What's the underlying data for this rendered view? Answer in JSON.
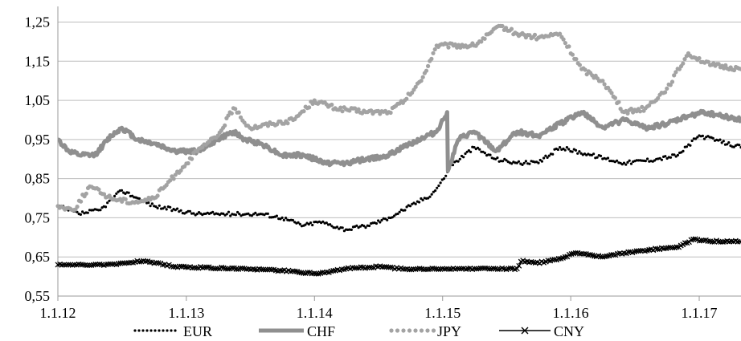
{
  "chart_data": {
    "type": "line",
    "title": "",
    "xlabel": "",
    "ylabel": "",
    "grid": "horizontal",
    "legend": "bottom",
    "x_ticks": [
      "1.1.12",
      "1.1.13",
      "1.1.14",
      "1.1.15",
      "1.1.16",
      "1.1.17"
    ],
    "y_ticks": [
      "0,55",
      "0,65",
      "0,75",
      "0,85",
      "0,95",
      "1,05",
      "1,15",
      "1,25"
    ],
    "xlim": [
      "2012-01-01",
      "2017-04-30"
    ],
    "ylim": [
      0.55,
      1.29
    ],
    "colors": {
      "EUR": "#000000",
      "CHF": "#8f8f8f",
      "JPY": "#a3a3a3",
      "CNY": "#000000",
      "grid": "#bdbdbd",
      "axis": "#9a9a9a"
    },
    "series": [
      {
        "name": "EUR",
        "style": "dotted",
        "points": [
          [
            "2012-01-01",
            0.78
          ],
          [
            "2012-03-01",
            0.76
          ],
          [
            "2012-05-01",
            0.77
          ],
          [
            "2012-07-01",
            0.82
          ],
          [
            "2012-08-15",
            0.8
          ],
          [
            "2012-10-01",
            0.78
          ],
          [
            "2012-12-01",
            0.77
          ],
          [
            "2013-02-01",
            0.76
          ],
          [
            "2013-04-01",
            0.76
          ],
          [
            "2013-06-01",
            0.76
          ],
          [
            "2013-08-01",
            0.76
          ],
          [
            "2013-10-01",
            0.75
          ],
          [
            "2013-12-01",
            0.73
          ],
          [
            "2014-01-15",
            0.74
          ],
          [
            "2014-04-01",
            0.72
          ],
          [
            "2014-06-01",
            0.73
          ],
          [
            "2014-08-01",
            0.75
          ],
          [
            "2014-10-01",
            0.78
          ],
          [
            "2014-12-01",
            0.81
          ],
          [
            "2015-01-05",
            0.85
          ],
          [
            "2015-01-20",
            0.88
          ],
          [
            "2015-04-01",
            0.93
          ],
          [
            "2015-06-01",
            0.9
          ],
          [
            "2015-08-01",
            0.89
          ],
          [
            "2015-10-01",
            0.89
          ],
          [
            "2015-12-01",
            0.93
          ],
          [
            "2016-03-01",
            0.91
          ],
          [
            "2016-06-01",
            0.89
          ],
          [
            "2016-09-01",
            0.9
          ],
          [
            "2016-11-01",
            0.91
          ],
          [
            "2017-01-01",
            0.96
          ],
          [
            "2017-04-30",
            0.93
          ]
        ]
      },
      {
        "name": "CHF",
        "style": "thick",
        "points": [
          [
            "2012-01-01",
            0.95
          ],
          [
            "2012-02-01",
            0.92
          ],
          [
            "2012-03-01",
            0.91
          ],
          [
            "2012-04-15",
            0.91
          ],
          [
            "2012-06-01",
            0.96
          ],
          [
            "2012-07-01",
            0.98
          ],
          [
            "2012-08-15",
            0.95
          ],
          [
            "2012-10-01",
            0.94
          ],
          [
            "2012-12-01",
            0.92
          ],
          [
            "2013-02-01",
            0.92
          ],
          [
            "2013-04-01",
            0.95
          ],
          [
            "2013-05-15",
            0.97
          ],
          [
            "2013-06-15",
            0.95
          ],
          [
            "2013-08-01",
            0.94
          ],
          [
            "2013-10-01",
            0.91
          ],
          [
            "2013-12-01",
            0.91
          ],
          [
            "2014-02-01",
            0.89
          ],
          [
            "2014-04-01",
            0.89
          ],
          [
            "2014-06-01",
            0.9
          ],
          [
            "2014-08-01",
            0.91
          ],
          [
            "2014-10-01",
            0.94
          ],
          [
            "2014-12-15",
            0.97
          ],
          [
            "2015-01-14",
            1.02
          ],
          [
            "2015-01-16",
            0.87
          ],
          [
            "2015-02-15",
            0.95
          ],
          [
            "2015-04-01",
            0.97
          ],
          [
            "2015-06-01",
            0.92
          ],
          [
            "2015-08-01",
            0.97
          ],
          [
            "2015-10-01",
            0.96
          ],
          [
            "2015-12-01",
            0.99
          ],
          [
            "2016-02-01",
            1.02
          ],
          [
            "2016-04-01",
            0.98
          ],
          [
            "2016-06-01",
            1.0
          ],
          [
            "2016-08-01",
            0.98
          ],
          [
            "2016-10-01",
            0.99
          ],
          [
            "2016-12-01",
            1.01
          ],
          [
            "2017-01-15",
            1.02
          ],
          [
            "2017-04-30",
            1.0
          ]
        ]
      },
      {
        "name": "JPY",
        "style": "dots",
        "points": [
          [
            "2012-01-01",
            0.78
          ],
          [
            "2012-02-15",
            0.77
          ],
          [
            "2012-04-01",
            0.83
          ],
          [
            "2012-06-01",
            0.8
          ],
          [
            "2012-08-01",
            0.79
          ],
          [
            "2012-10-01",
            0.8
          ],
          [
            "2012-12-01",
            0.86
          ],
          [
            "2013-02-01",
            0.92
          ],
          [
            "2013-04-01",
            0.96
          ],
          [
            "2013-05-15",
            1.03
          ],
          [
            "2013-07-01",
            0.98
          ],
          [
            "2013-09-01",
            0.99
          ],
          [
            "2013-11-01",
            1.0
          ],
          [
            "2014-01-01",
            1.05
          ],
          [
            "2014-03-01",
            1.03
          ],
          [
            "2014-06-01",
            1.02
          ],
          [
            "2014-08-01",
            1.02
          ],
          [
            "2014-09-15",
            1.05
          ],
          [
            "2014-11-01",
            1.1
          ],
          [
            "2014-12-15",
            1.19
          ],
          [
            "2015-02-01",
            1.19
          ],
          [
            "2015-04-01",
            1.19
          ],
          [
            "2015-06-15",
            1.24
          ],
          [
            "2015-08-01",
            1.22
          ],
          [
            "2015-10-01",
            1.21
          ],
          [
            "2015-12-01",
            1.22
          ],
          [
            "2016-02-01",
            1.13
          ],
          [
            "2016-04-01",
            1.1
          ],
          [
            "2016-06-01",
            1.02
          ],
          [
            "2016-08-01",
            1.03
          ],
          [
            "2016-10-01",
            1.08
          ],
          [
            "2016-12-01",
            1.17
          ],
          [
            "2017-02-01",
            1.14
          ],
          [
            "2017-04-30",
            1.13
          ]
        ]
      },
      {
        "name": "CNY",
        "style": "cross",
        "points": [
          [
            "2012-01-01",
            0.63
          ],
          [
            "2012-06-01",
            0.63
          ],
          [
            "2012-09-01",
            0.64
          ],
          [
            "2012-12-01",
            0.625
          ],
          [
            "2013-06-01",
            0.62
          ],
          [
            "2013-10-01",
            0.615
          ],
          [
            "2014-01-15",
            0.607
          ],
          [
            "2014-04-01",
            0.62
          ],
          [
            "2014-07-01",
            0.625
          ],
          [
            "2014-10-01",
            0.618
          ],
          [
            "2015-01-01",
            0.62
          ],
          [
            "2015-06-01",
            0.62
          ],
          [
            "2015-08-01",
            0.62
          ],
          [
            "2015-08-15",
            0.64
          ],
          [
            "2015-10-01",
            0.635
          ],
          [
            "2015-12-01",
            0.645
          ],
          [
            "2016-01-15",
            0.66
          ],
          [
            "2016-04-01",
            0.65
          ],
          [
            "2016-06-01",
            0.66
          ],
          [
            "2016-09-01",
            0.67
          ],
          [
            "2016-11-01",
            0.675
          ],
          [
            "2016-12-15",
            0.695
          ],
          [
            "2017-02-01",
            0.69
          ],
          [
            "2017-04-30",
            0.69
          ]
        ]
      }
    ]
  }
}
